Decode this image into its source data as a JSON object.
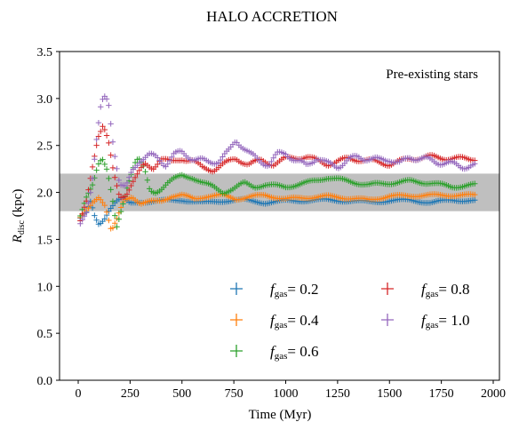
{
  "chart_data": {
    "type": "scatter",
    "title": "HALO ACCRETION",
    "annotation": "Pre-existing stars",
    "xlabel": "Time (Myr)",
    "ylabel": {
      "main": "R",
      "sub": "disc",
      "unit": " (kpc)"
    },
    "xlim": [
      -90,
      2030
    ],
    "ylim": [
      0,
      3.5
    ],
    "xticks": [
      0,
      250,
      500,
      750,
      1000,
      1250,
      1500,
      1750,
      2000
    ],
    "xtick_labels": [
      "0",
      "250",
      "500",
      "750",
      "1000",
      "1250",
      "1500",
      "1750",
      "2000"
    ],
    "yticks": [
      0.0,
      0.5,
      1.0,
      1.5,
      2.0,
      2.5,
      3.0,
      3.5
    ],
    "ytick_labels": [
      "0.0",
      "0.5",
      "1.0",
      "1.5",
      "2.0",
      "2.5",
      "3.0",
      "3.5"
    ],
    "band": {
      "y0": 1.8,
      "y1": 2.2,
      "color": "#bfbfbf"
    },
    "grid": false,
    "marker": "plus",
    "legend": {
      "placement": "lower-right",
      "columns": 2
    },
    "series": [
      {
        "name": "= 0.2",
        "label_main": "f",
        "label_sub": "gas",
        "label_value": "= 0.2",
        "color": "#1f77b4",
        "knots": [
          [
            10,
            1.72
          ],
          [
            40,
            1.78
          ],
          [
            60,
            1.9
          ],
          [
            80,
            1.74
          ],
          [
            100,
            1.66
          ],
          [
            125,
            1.72
          ],
          [
            150,
            1.82
          ],
          [
            180,
            1.9
          ],
          [
            210,
            1.94
          ],
          [
            250,
            1.88
          ],
          [
            300,
            1.9
          ],
          [
            400,
            1.91
          ],
          [
            500,
            1.92
          ],
          [
            600,
            1.89
          ],
          [
            700,
            1.91
          ],
          [
            800,
            1.92
          ],
          [
            900,
            1.89
          ],
          [
            1000,
            1.91
          ],
          [
            1200,
            1.92
          ],
          [
            1400,
            1.9
          ],
          [
            1600,
            1.92
          ],
          [
            1700,
            1.89
          ],
          [
            1800,
            1.92
          ],
          [
            1920,
            1.91
          ]
        ],
        "amp": 0.012,
        "period": 190,
        "phase": 0.3
      },
      {
        "name": "= 0.4",
        "label_main": "f",
        "label_sub": "gas",
        "label_value": "= 0.4",
        "color": "#ff7f0e",
        "knots": [
          [
            10,
            1.72
          ],
          [
            40,
            1.8
          ],
          [
            70,
            1.9
          ],
          [
            100,
            1.96
          ],
          [
            130,
            1.86
          ],
          [
            160,
            1.58
          ],
          [
            185,
            1.7
          ],
          [
            220,
            1.92
          ],
          [
            260,
            1.96
          ],
          [
            300,
            1.88
          ],
          [
            350,
            1.9
          ],
          [
            400,
            1.91
          ],
          [
            450,
            1.96
          ],
          [
            500,
            1.97
          ],
          [
            560,
            1.93
          ],
          [
            620,
            1.96
          ],
          [
            700,
            1.97
          ],
          [
            760,
            1.93
          ],
          [
            850,
            1.96
          ],
          [
            900,
            1.97
          ],
          [
            1000,
            1.93
          ],
          [
            1200,
            1.96
          ],
          [
            1400,
            1.92
          ],
          [
            1500,
            1.96
          ],
          [
            1700,
            1.97
          ],
          [
            1920,
            1.97
          ]
        ],
        "amp": 0.012,
        "period": 170,
        "phase": 1.1
      },
      {
        "name": "= 0.6",
        "label_main": "f",
        "label_sub": "gas",
        "label_value": "= 0.6",
        "color": "#2ca02c",
        "knots": [
          [
            10,
            1.74
          ],
          [
            40,
            1.96
          ],
          [
            70,
            2.1
          ],
          [
            95,
            2.3
          ],
          [
            115,
            2.36
          ],
          [
            140,
            2.22
          ],
          [
            165,
            1.92
          ],
          [
            185,
            1.62
          ],
          [
            210,
            1.84
          ],
          [
            240,
            2.1
          ],
          [
            270,
            2.3
          ],
          [
            290,
            2.36
          ],
          [
            320,
            2.24
          ],
          [
            345,
            2.02
          ],
          [
            370,
            2.0
          ],
          [
            400,
            2.04
          ],
          [
            430,
            2.1
          ],
          [
            460,
            2.14
          ],
          [
            500,
            2.18
          ],
          [
            550,
            2.16
          ],
          [
            600,
            2.1
          ],
          [
            650,
            2.06
          ],
          [
            700,
            2.0
          ],
          [
            750,
            2.04
          ],
          [
            800,
            2.1
          ],
          [
            850,
            2.06
          ],
          [
            900,
            2.08
          ],
          [
            1000,
            2.06
          ],
          [
            1100,
            2.1
          ],
          [
            1200,
            2.16
          ],
          [
            1300,
            2.12
          ],
          [
            1400,
            2.08
          ],
          [
            1500,
            2.1
          ],
          [
            1600,
            2.12
          ],
          [
            1700,
            2.1
          ],
          [
            1800,
            2.06
          ],
          [
            1920,
            2.08
          ]
        ],
        "amp": 0.015,
        "period": 160,
        "phase": 2.0
      },
      {
        "name": "= 0.8",
        "label_main": "f",
        "label_sub": "gas",
        "label_value": "= 0.8",
        "color": "#d62728",
        "knots": [
          [
            10,
            1.68
          ],
          [
            40,
            1.9
          ],
          [
            70,
            2.3
          ],
          [
            95,
            2.6
          ],
          [
            120,
            2.72
          ],
          [
            145,
            2.54
          ],
          [
            170,
            2.2
          ],
          [
            200,
            1.95
          ],
          [
            230,
            1.98
          ],
          [
            260,
            2.1
          ],
          [
            290,
            2.2
          ],
          [
            320,
            2.3
          ],
          [
            360,
            2.26
          ],
          [
            400,
            2.36
          ],
          [
            450,
            2.32
          ],
          [
            500,
            2.36
          ],
          [
            550,
            2.34
          ],
          [
            600,
            2.26
          ],
          [
            650,
            2.24
          ],
          [
            700,
            2.3
          ],
          [
            760,
            2.36
          ],
          [
            820,
            2.3
          ],
          [
            880,
            2.34
          ],
          [
            940,
            2.3
          ],
          [
            1000,
            2.36
          ],
          [
            1100,
            2.38
          ],
          [
            1200,
            2.3
          ],
          [
            1300,
            2.36
          ],
          [
            1400,
            2.34
          ],
          [
            1500,
            2.3
          ],
          [
            1600,
            2.36
          ],
          [
            1700,
            2.38
          ],
          [
            1800,
            2.36
          ],
          [
            1920,
            2.36
          ]
        ],
        "amp": 0.02,
        "period": 140,
        "phase": 0.7
      },
      {
        "name": "= 1.0",
        "label_main": "f",
        "label_sub": "gas",
        "label_value": "= 1.0",
        "color": "#9467bd",
        "knots": [
          [
            10,
            1.64
          ],
          [
            40,
            1.8
          ],
          [
            65,
            2.1
          ],
          [
            90,
            2.6
          ],
          [
            110,
            2.92
          ],
          [
            125,
            3.0
          ],
          [
            145,
            2.96
          ],
          [
            170,
            2.5
          ],
          [
            200,
            2.1
          ],
          [
            230,
            2.04
          ],
          [
            260,
            2.22
          ],
          [
            300,
            2.36
          ],
          [
            340,
            2.4
          ],
          [
            380,
            2.36
          ],
          [
            420,
            2.3
          ],
          [
            460,
            2.4
          ],
          [
            500,
            2.42
          ],
          [
            560,
            2.36
          ],
          [
            620,
            2.32
          ],
          [
            680,
            2.34
          ],
          [
            730,
            2.44
          ],
          [
            760,
            2.56
          ],
          [
            790,
            2.5
          ],
          [
            830,
            2.4
          ],
          [
            870,
            2.34
          ],
          [
            920,
            2.3
          ],
          [
            960,
            2.4
          ],
          [
            1000,
            2.42
          ],
          [
            1050,
            2.34
          ],
          [
            1100,
            2.28
          ],
          [
            1150,
            2.38
          ],
          [
            1200,
            2.3
          ],
          [
            1250,
            2.28
          ],
          [
            1300,
            2.34
          ],
          [
            1350,
            2.38
          ],
          [
            1400,
            2.36
          ],
          [
            1450,
            2.34
          ],
          [
            1500,
            2.36
          ],
          [
            1550,
            2.3
          ],
          [
            1600,
            2.38
          ],
          [
            1700,
            2.34
          ],
          [
            1800,
            2.3
          ],
          [
            1850,
            2.28
          ],
          [
            1920,
            2.28
          ]
        ],
        "amp": 0.03,
        "period": 120,
        "phase": 1.5
      }
    ]
  }
}
